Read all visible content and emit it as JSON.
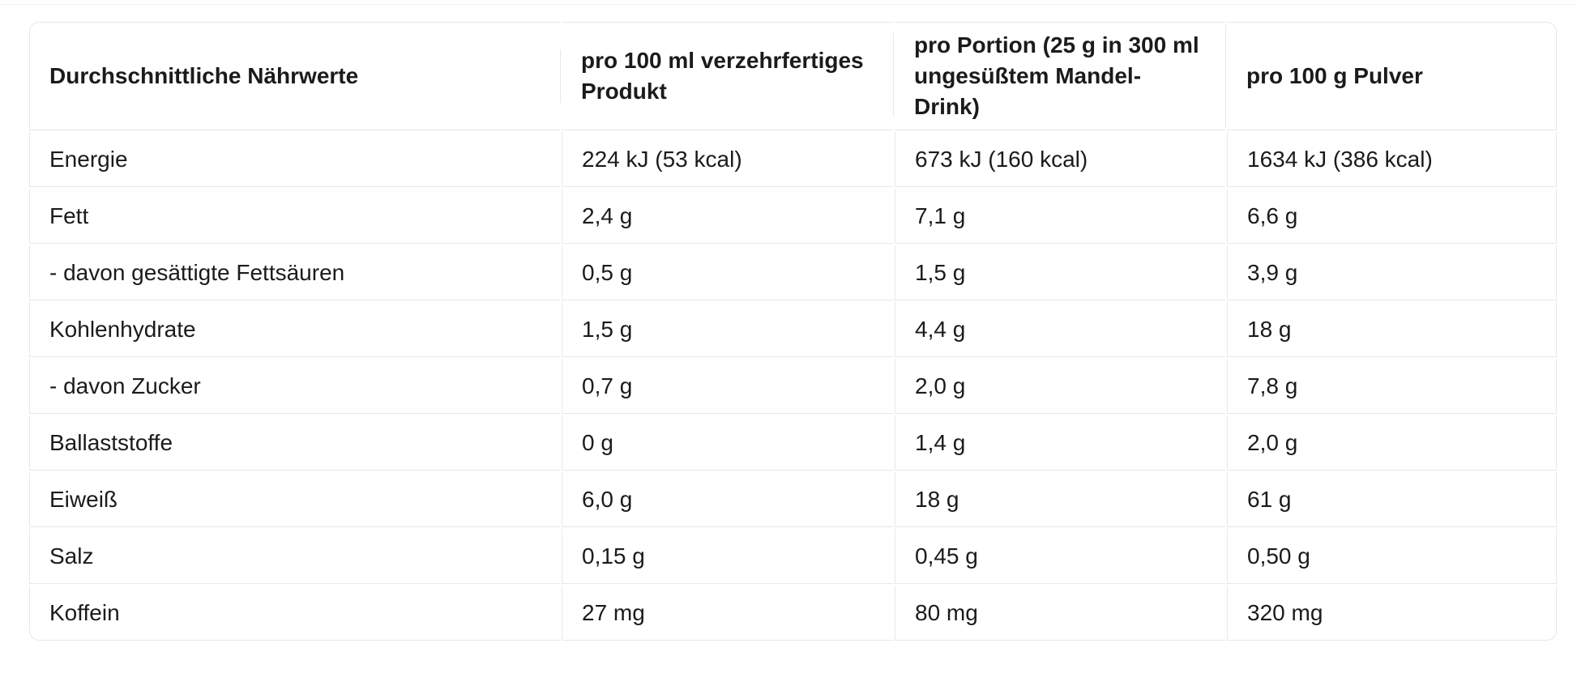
{
  "colors": {
    "text": "#1b1b1b",
    "border": "#e8e8e8",
    "background": "#ffffff"
  },
  "table": {
    "columns": [
      {
        "label": "Durchschnittliche Nährwerte"
      },
      {
        "label": "pro 100 ml verzehrfertiges Produkt"
      },
      {
        "label": "pro Portion (25 g in 300 ml ungesüßtem Mandel-Drink)"
      },
      {
        "label": "pro 100 g Pulver"
      }
    ],
    "rows": [
      {
        "label": "Energie",
        "values": [
          "224 kJ (53 kcal)",
          "673 kJ (160 kcal)",
          "1634 kJ (386 kcal)"
        ]
      },
      {
        "label": "Fett",
        "values": [
          "2,4 g",
          "7,1 g",
          "6,6 g"
        ]
      },
      {
        "label": "- davon gesättigte Fettsäuren",
        "values": [
          "0,5 g",
          "1,5 g",
          "3,9 g"
        ]
      },
      {
        "label": "Kohlenhydrate",
        "values": [
          "1,5 g",
          "4,4 g",
          "18 g"
        ]
      },
      {
        "label": "- davon Zucker",
        "values": [
          "0,7 g",
          "2,0 g",
          "7,8 g"
        ]
      },
      {
        "label": "Ballaststoffe",
        "values": [
          "0 g",
          "1,4 g",
          "2,0 g"
        ]
      },
      {
        "label": "Eiweiß",
        "values": [
          "6,0 g",
          "18 g",
          "61 g"
        ]
      },
      {
        "label": "Salz",
        "values": [
          "0,15 g",
          "0,45 g",
          "0,50 g"
        ]
      },
      {
        "label": "Koffein",
        "values": [
          "27 mg",
          "80 mg",
          "320 mg"
        ]
      }
    ]
  }
}
